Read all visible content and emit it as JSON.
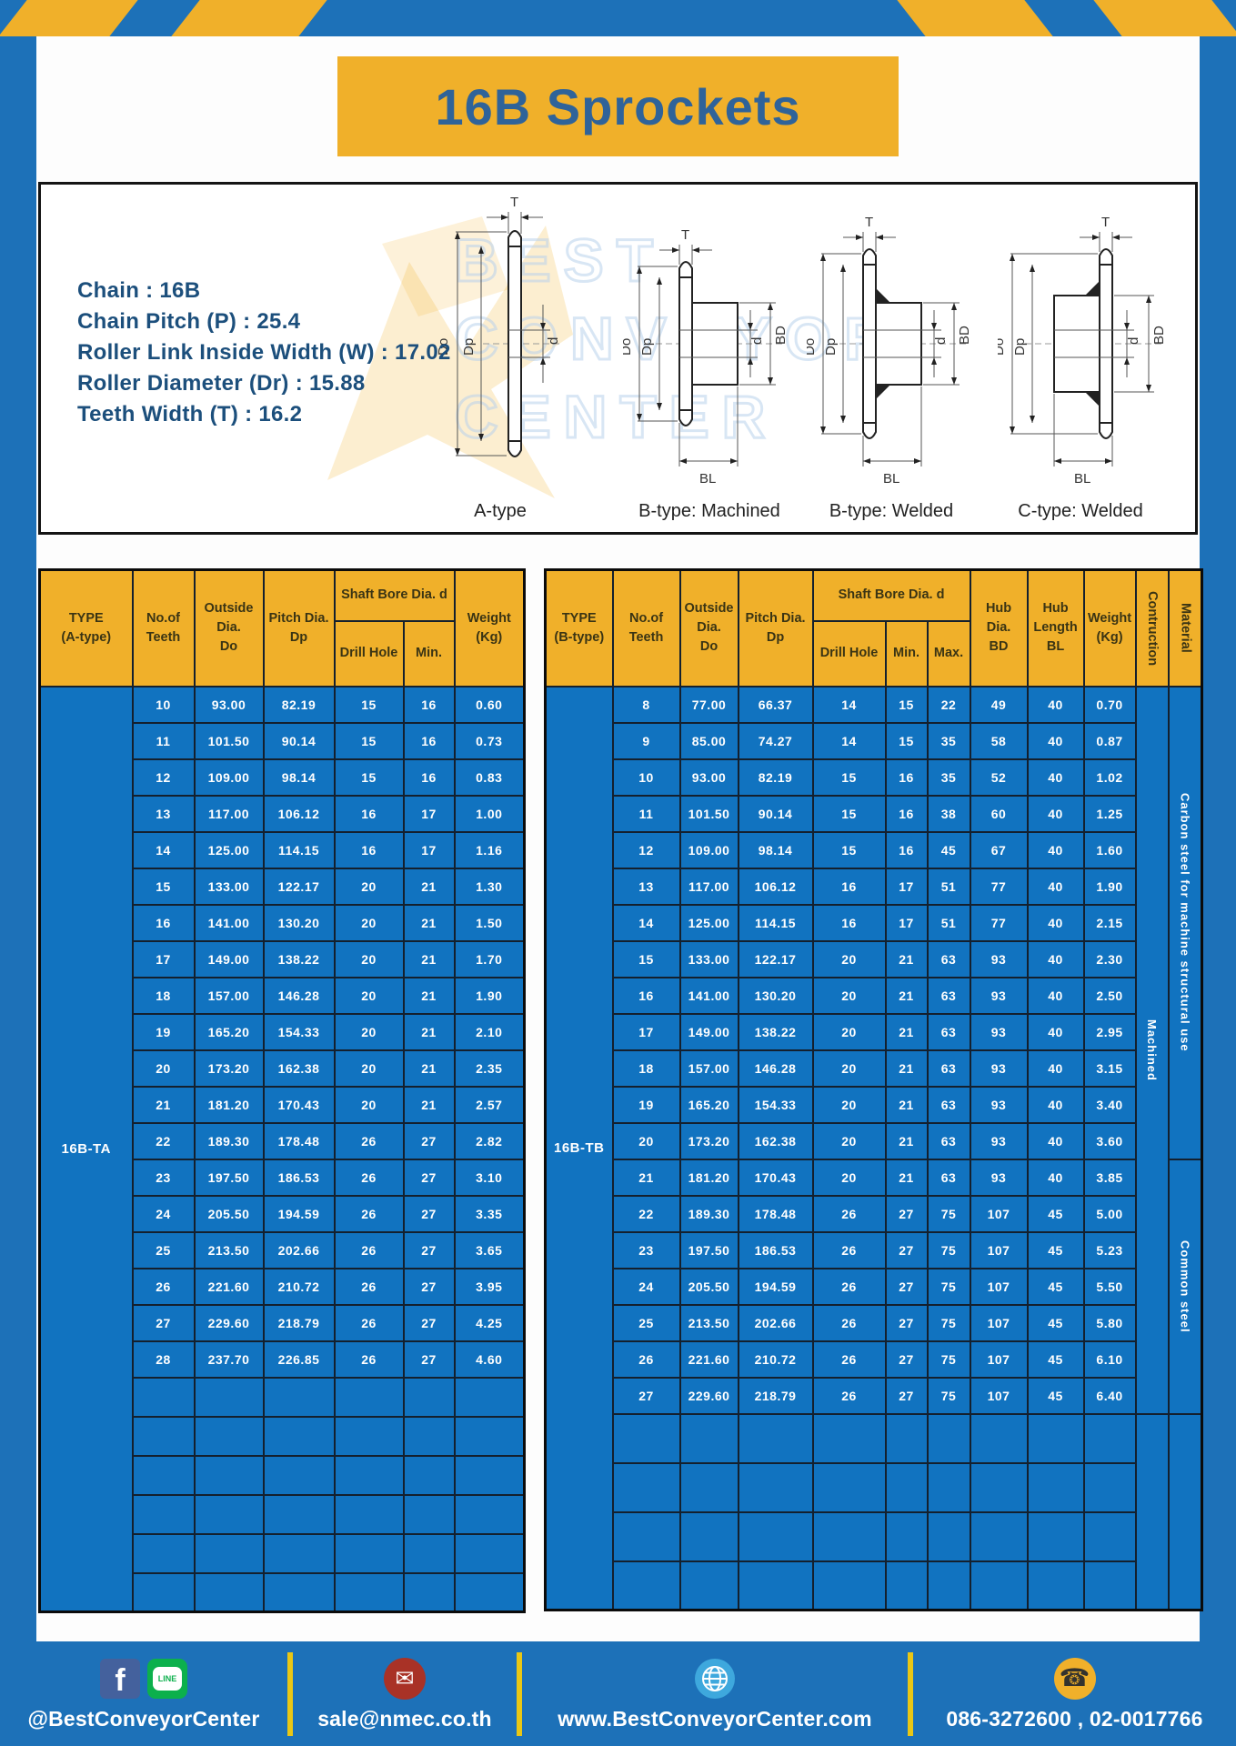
{
  "page": {
    "title": "16B Sprockets",
    "watermark": "BEST\nCONVEYOR\nCENTER"
  },
  "specs": {
    "lines": [
      "Chain : 16B",
      "Chain Pitch (P) : 25.4",
      "Roller Link Inside Width (W) : 17.02",
      "Roller Diameter (Dr) : 15.88",
      "Teeth Width (T) : 16.2"
    ]
  },
  "diagrams": {
    "captions": [
      "A-type",
      "B-type: Machined",
      "B-type: Welded",
      "C-type: Welded"
    ],
    "labels": {
      "t": "T",
      "dia_o": "Do",
      "dia_p": "Dp",
      "d": "d",
      "bd": "BD",
      "bl": "BL"
    }
  },
  "table_a": {
    "type_label": "16B-TA",
    "headers": {
      "type": "TYPE\n(A-type)",
      "teeth": "No.of\nTeeth",
      "outside": "Outside\nDia.\nDo",
      "pitch": "Pitch Dia.\nDp",
      "shaft": "Shaft Bore Dia. d",
      "drill": "Drill Hole",
      "min": "Min.",
      "weight": "Weight\n(Kg)"
    },
    "rows": [
      [
        "10",
        "93.00",
        "82.19",
        "15",
        "16",
        "0.60"
      ],
      [
        "11",
        "101.50",
        "90.14",
        "15",
        "16",
        "0.73"
      ],
      [
        "12",
        "109.00",
        "98.14",
        "15",
        "16",
        "0.83"
      ],
      [
        "13",
        "117.00",
        "106.12",
        "16",
        "17",
        "1.00"
      ],
      [
        "14",
        "125.00",
        "114.15",
        "16",
        "17",
        "1.16"
      ],
      [
        "15",
        "133.00",
        "122.17",
        "20",
        "21",
        "1.30"
      ],
      [
        "16",
        "141.00",
        "130.20",
        "20",
        "21",
        "1.50"
      ],
      [
        "17",
        "149.00",
        "138.22",
        "20",
        "21",
        "1.70"
      ],
      [
        "18",
        "157.00",
        "146.28",
        "20",
        "21",
        "1.90"
      ],
      [
        "19",
        "165.20",
        "154.33",
        "20",
        "21",
        "2.10"
      ],
      [
        "20",
        "173.20",
        "162.38",
        "20",
        "21",
        "2.35"
      ],
      [
        "21",
        "181.20",
        "170.43",
        "20",
        "21",
        "2.57"
      ],
      [
        "22",
        "189.30",
        "178.48",
        "26",
        "27",
        "2.82"
      ],
      [
        "23",
        "197.50",
        "186.53",
        "26",
        "27",
        "3.10"
      ],
      [
        "24",
        "205.50",
        "194.59",
        "26",
        "27",
        "3.35"
      ],
      [
        "25",
        "213.50",
        "202.66",
        "26",
        "27",
        "3.65"
      ],
      [
        "26",
        "221.60",
        "210.72",
        "26",
        "27",
        "3.95"
      ],
      [
        "27",
        "229.60",
        "218.79",
        "26",
        "27",
        "4.25"
      ],
      [
        "28",
        "237.70",
        "226.85",
        "26",
        "27",
        "4.60"
      ]
    ],
    "empty_rows": 6,
    "tail_merge_count": 0
  },
  "table_b": {
    "type_label": "16B-TB",
    "headers": {
      "type": "TYPE\n(B-type)",
      "teeth": "No.of\nTeeth",
      "outside": "Outside\nDia.\nDo",
      "pitch": "Pitch Dia.\nDp",
      "shaft": "Shaft Bore Dia. d",
      "drill": "Drill Hole",
      "min": "Min.",
      "max": "Max.",
      "hub_dia": "Hub Dia.\nBD",
      "hub_len": "Hub\nLength\nBL",
      "weight": "Weight\n(Kg)",
      "construction": "Contruction",
      "material": "Material"
    },
    "rows": [
      [
        "8",
        "77.00",
        "66.37",
        "14",
        "15",
        "22",
        "49",
        "40",
        "0.70"
      ],
      [
        "9",
        "85.00",
        "74.27",
        "14",
        "15",
        "35",
        "58",
        "40",
        "0.87"
      ],
      [
        "10",
        "93.00",
        "82.19",
        "15",
        "16",
        "35",
        "52",
        "40",
        "1.02"
      ],
      [
        "11",
        "101.50",
        "90.14",
        "15",
        "16",
        "38",
        "60",
        "40",
        "1.25"
      ],
      [
        "12",
        "109.00",
        "98.14",
        "15",
        "16",
        "45",
        "67",
        "40",
        "1.60"
      ],
      [
        "13",
        "117.00",
        "106.12",
        "16",
        "17",
        "51",
        "77",
        "40",
        "1.90"
      ],
      [
        "14",
        "125.00",
        "114.15",
        "16",
        "17",
        "51",
        "77",
        "40",
        "2.15"
      ],
      [
        "15",
        "133.00",
        "122.17",
        "20",
        "21",
        "63",
        "93",
        "40",
        "2.30"
      ],
      [
        "16",
        "141.00",
        "130.20",
        "20",
        "21",
        "63",
        "93",
        "40",
        "2.50"
      ],
      [
        "17",
        "149.00",
        "138.22",
        "20",
        "21",
        "63",
        "93",
        "40",
        "2.95"
      ],
      [
        "18",
        "157.00",
        "146.28",
        "20",
        "21",
        "63",
        "93",
        "40",
        "3.15"
      ],
      [
        "19",
        "165.20",
        "154.33",
        "20",
        "21",
        "63",
        "93",
        "40",
        "3.40"
      ],
      [
        "20",
        "173.20",
        "162.38",
        "20",
        "21",
        "63",
        "93",
        "40",
        "3.60"
      ],
      [
        "21",
        "181.20",
        "170.43",
        "20",
        "21",
        "63",
        "93",
        "40",
        "3.85"
      ],
      [
        "22",
        "189.30",
        "178.48",
        "26",
        "27",
        "75",
        "107",
        "45",
        "5.00"
      ],
      [
        "23",
        "197.50",
        "186.53",
        "26",
        "27",
        "75",
        "107",
        "45",
        "5.23"
      ],
      [
        "24",
        "205.50",
        "194.59",
        "26",
        "27",
        "75",
        "107",
        "45",
        "5.50"
      ],
      [
        "25",
        "213.50",
        "202.66",
        "26",
        "27",
        "75",
        "107",
        "45",
        "5.80"
      ],
      [
        "26",
        "221.60",
        "210.72",
        "26",
        "27",
        "75",
        "107",
        "45",
        "6.10"
      ],
      [
        "27",
        "229.60",
        "218.79",
        "26",
        "27",
        "75",
        "107",
        "45",
        "6.40"
      ]
    ],
    "merges": [
      {
        "row": 0,
        "span": 20,
        "label": "Machined",
        "cls": "vcell construction"
      },
      {
        "row": 0,
        "span": 13,
        "label": "Carbon steel for machine structural use",
        "cls": "vcell material"
      },
      {
        "row": 13,
        "span": 7,
        "label": "Common steel",
        "cls": "vcell material"
      }
    ],
    "empty_rows": 4,
    "tail_merge_count": 2
  },
  "footer": {
    "fb_letter": "f",
    "line_label": "LINE",
    "mail_glyph": "✉",
    "phone_glyph": "☎",
    "items": [
      {
        "text": "@BestConveyorCenter"
      },
      {
        "text": "sale@nmec.co.th"
      },
      {
        "text": "www.BestConveyorCenter.com"
      },
      {
        "text": "086-3272600 , 02-0017766"
      }
    ]
  },
  "colors": {
    "frame_blue": "#1d71b8",
    "cell_blue": "#1173c0",
    "header_yellow": "#f0b02a",
    "navy_text": "#1c4f7c",
    "divider_yellow": "#e9c715",
    "line_green": "#0cb04c",
    "facebook_blue": "#44619d",
    "mail_red": "#a93226"
  }
}
